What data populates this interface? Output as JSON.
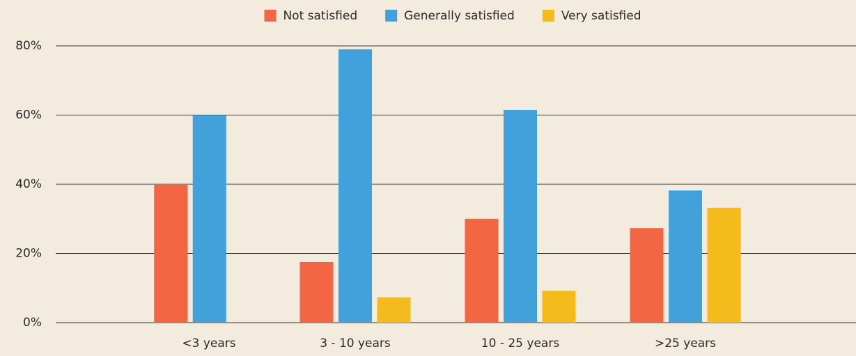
{
  "chart_data": {
    "type": "bar",
    "categories": [
      "<3 years",
      "3 - 10 years",
      "10 - 25 years",
      ">25 years"
    ],
    "series": [
      {
        "name": "Not satisfied",
        "color": "#f26644",
        "values": [
          40,
          17.5,
          30,
          27.3
        ]
      },
      {
        "name": "Generally satisfied",
        "color": "#42a0db",
        "values": [
          60,
          79,
          61.5,
          38.2
        ]
      },
      {
        "name": "Very satisfied",
        "color": "#f5bb1d",
        "values": [
          null,
          7.3,
          9.2,
          33.2
        ]
      }
    ],
    "ylim": [
      0,
      80
    ],
    "yticks": [
      {
        "value": 0,
        "label": "0%"
      },
      {
        "value": 20,
        "label": "20%"
      },
      {
        "value": 40,
        "label": "40%"
      },
      {
        "value": 60,
        "label": "60%"
      },
      {
        "value": 80,
        "label": "80%"
      }
    ],
    "grid": true,
    "legend": "top"
  }
}
